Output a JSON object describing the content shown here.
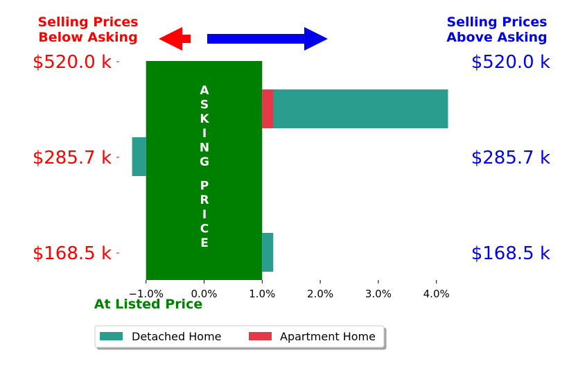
{
  "chart_data": {
    "type": "bar",
    "orientation": "horizontal",
    "xlabel": "",
    "ylabel": "",
    "xlim": [
      -1.0,
      4.2
    ],
    "x_ticks": [
      -1.0,
      0.0,
      1.0,
      2.0,
      3.0,
      4.0
    ],
    "x_tick_labels": [
      "−1.0%",
      "0.0%",
      "1.0%",
      "2.0%",
      "3.0%",
      "4.0%"
    ],
    "price_levels": [
      "$520.0 k",
      "$285.7 k",
      "$168.5 k"
    ],
    "series": [
      {
        "name": "Detached Home",
        "color": "#2a9d8f",
        "prices": [
          "$520.0 k",
          "$285.7 k",
          "$168.5 k"
        ],
        "values": [
          4.2,
          -1.2,
          1.2
        ]
      },
      {
        "name": "Apartment Home",
        "color": "#e63946",
        "prices": [
          "$285.7 k"
        ],
        "values": [
          1.2
        ]
      }
    ],
    "asking_band": {
      "from": -1.0,
      "to": 1.0,
      "color": "#008000",
      "text_line1": "ASKING",
      "text_line2": "PRICE"
    },
    "annotations": {
      "below_asking": "Selling Prices\nBelow Asking",
      "above_asking": "Selling Prices\nAbove Asking",
      "at_listed": "At Listed Price"
    },
    "colors": {
      "below": "#ff0000",
      "above": "#0000ee",
      "listed": "#008000"
    },
    "legend": {
      "placement": "bottom-center",
      "entries": [
        "Detached Home",
        "Apartment Home"
      ]
    }
  }
}
